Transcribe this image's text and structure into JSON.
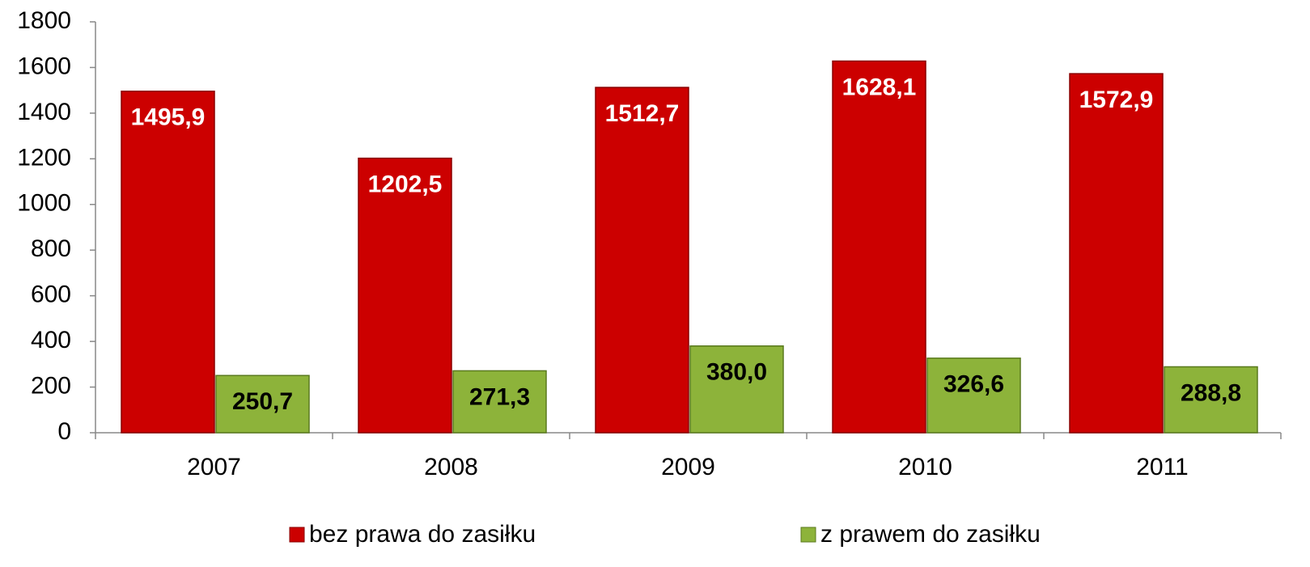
{
  "chart_data": {
    "type": "bar",
    "categories": [
      "2007",
      "2008",
      "2009",
      "2010",
      "2011"
    ],
    "series": [
      {
        "name": "bez prawa do zasiłku",
        "color": "#cc0000",
        "values": [
          1495.9,
          1202.5,
          1512.7,
          1628.1,
          1572.9
        ],
        "value_labels": [
          "1495,9",
          "1202,5",
          "1512,7",
          "1628,1",
          "1572,9"
        ]
      },
      {
        "name": "z prawem do zasiłku",
        "color": "#8db33a",
        "values": [
          250.7,
          271.3,
          380.0,
          326.6,
          288.8
        ],
        "value_labels": [
          "250,7",
          "271,3",
          "380,0",
          "326,6",
          "288,8"
        ]
      }
    ],
    "ylim": [
      0,
      1800
    ],
    "yticks": [
      0,
      200,
      400,
      600,
      800,
      1000,
      1200,
      1400,
      1600,
      1800
    ],
    "grid": false,
    "legend": "bottom"
  }
}
